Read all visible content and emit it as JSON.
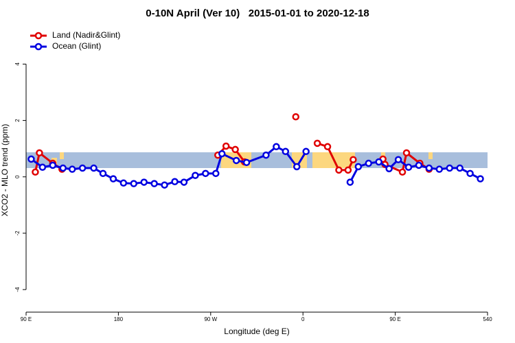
{
  "chart_data": {
    "type": "line",
    "title": "0-10N April (Ver 10)   2015-01-01 to 2020-12-18",
    "xlabel": "Longitude (deg E)",
    "ylabel": "XCO2 - MLO trend (ppm)",
    "xlim": [
      90,
      540
    ],
    "xticks": [
      {
        "value": 90,
        "label": "90 E"
      },
      180,
      {
        "value": 270,
        "label": "90 W"
      },
      {
        "value": 360,
        "label": "0"
      },
      {
        "value": 450,
        "label": "90 E"
      },
      540
    ],
    "ylim": [
      -4.8,
      5.3
    ],
    "yticks": [
      -4,
      -2,
      0,
      2,
      4
    ],
    "legend": "top-left",
    "series": [
      {
        "name": "Land (Nadir&Glint)",
        "color": "#e00000",
        "x": [
          99,
          103,
          116,
          125,
          null,
          277,
          285,
          294,
          303,
          null,
          353,
          null,
          374,
          384,
          395,
          404,
          409,
          null,
          438,
          440,
          457,
          461,
          474,
          483
        ],
        "values": [
          0.17,
          0.85,
          0.48,
          0.27,
          null,
          0.77,
          1.09,
          0.97,
          0.53,
          null,
          2.13,
          null,
          1.19,
          1.07,
          0.24,
          0.24,
          0.61,
          null,
          0.63,
          0.44,
          0.17,
          0.85,
          0.48,
          0.27
        ]
      },
      {
        "name": "Ocean (Glint)",
        "color": "#0000e0",
        "x": [
          95,
          106,
          116,
          126,
          135,
          145,
          156,
          165,
          175,
          185,
          195,
          205,
          215,
          225,
          235,
          244,
          255,
          265,
          275,
          281,
          295,
          305,
          324,
          334,
          343,
          354,
          363,
          null,
          406,
          414,
          424,
          434,
          444,
          453,
          463,
          473,
          483,
          493,
          503,
          513,
          523,
          533
        ],
        "values": [
          0.63,
          0.34,
          0.41,
          0.31,
          0.27,
          0.31,
          0.31,
          0.12,
          -0.07,
          -0.22,
          -0.24,
          -0.19,
          -0.24,
          -0.29,
          -0.17,
          -0.19,
          0.05,
          0.12,
          0.12,
          0.82,
          0.58,
          0.51,
          0.77,
          1.07,
          0.9,
          0.36,
          0.9,
          null,
          -0.19,
          0.36,
          0.48,
          0.53,
          0.29,
          0.61,
          0.34,
          0.41,
          0.31,
          0.27,
          0.31,
          0.31,
          0.12,
          -0.07
        ]
      }
    ]
  }
}
